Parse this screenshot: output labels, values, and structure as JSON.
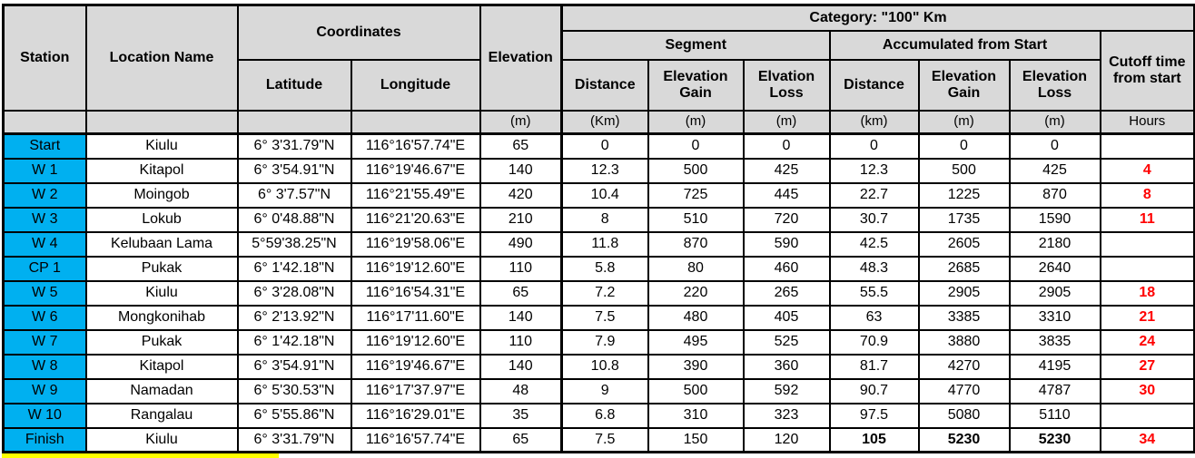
{
  "header": {
    "station": "Station",
    "location_name": "Location Name",
    "coordinates": "Coordinates",
    "latitude": "Latitude",
    "longitude": "Longitude",
    "elevation": "Elevation",
    "category": "Category: \"100\" Km",
    "segment": "Segment",
    "accumulated": "Accumulated from Start",
    "seg_distance": "Distance",
    "seg_gain": "Elevation Gain",
    "seg_loss": "Elvation Loss",
    "acc_distance": "Distance",
    "acc_gain": "Elevation Gain",
    "acc_loss": "Elevation Loss",
    "cutoff": "Cutoff time from start"
  },
  "units": {
    "elevation": "(m)",
    "seg_distance": "(Km)",
    "seg_gain": "(m)",
    "seg_loss": "(m)",
    "acc_distance": "(km)",
    "acc_gain": "(m)",
    "acc_loss": "(m)",
    "cutoff": "Hours"
  },
  "rows": [
    {
      "station": "Start",
      "location": "Kiulu",
      "latitude": "6° 3'31.79\"N",
      "longitude": "116°16'57.74\"E",
      "elevation": "65",
      "seg_distance": "0",
      "seg_gain": "0",
      "seg_loss": "0",
      "acc_distance": "0",
      "acc_gain": "0",
      "acc_loss": "0",
      "cutoff": ""
    },
    {
      "station": "W 1",
      "location": "Kitapol",
      "latitude": "6° 3'54.91\"N",
      "longitude": "116°19'46.67\"E",
      "elevation": "140",
      "seg_distance": "12.3",
      "seg_gain": "500",
      "seg_loss": "425",
      "acc_distance": "12.3",
      "acc_gain": "500",
      "acc_loss": "425",
      "cutoff": "4"
    },
    {
      "station": "W 2",
      "location": "Moingob",
      "latitude": "6° 3'7.57\"N",
      "longitude": "116°21'55.49\"E",
      "elevation": "420",
      "seg_distance": "10.4",
      "seg_gain": "725",
      "seg_loss": "445",
      "acc_distance": "22.7",
      "acc_gain": "1225",
      "acc_loss": "870",
      "cutoff": "8"
    },
    {
      "station": "W 3",
      "location": "Lokub",
      "latitude": "6° 0'48.88\"N",
      "longitude": "116°21'20.63\"E",
      "elevation": "210",
      "seg_distance": "8",
      "seg_gain": "510",
      "seg_loss": "720",
      "acc_distance": "30.7",
      "acc_gain": "1735",
      "acc_loss": "1590",
      "cutoff": "11"
    },
    {
      "station": "W 4",
      "location": "Kelubaan Lama",
      "latitude": "5°59'38.25\"N",
      "longitude": "116°19'58.06\"E",
      "elevation": "490",
      "seg_distance": "11.8",
      "seg_gain": "870",
      "seg_loss": "590",
      "acc_distance": "42.5",
      "acc_gain": "2605",
      "acc_loss": "2180",
      "cutoff": ""
    },
    {
      "station": "CP 1",
      "location": "Pukak",
      "latitude": "6° 1'42.18\"N",
      "longitude": "116°19'12.60\"E",
      "elevation": "110",
      "seg_distance": "5.8",
      "seg_gain": "80",
      "seg_loss": "460",
      "acc_distance": "48.3",
      "acc_gain": "2685",
      "acc_loss": "2640",
      "cutoff": ""
    },
    {
      "station": "W 5",
      "location": "Kiulu",
      "latitude": "6° 3'28.08\"N",
      "longitude": "116°16'54.31\"E",
      "elevation": "65",
      "seg_distance": "7.2",
      "seg_gain": "220",
      "seg_loss": "265",
      "acc_distance": "55.5",
      "acc_gain": "2905",
      "acc_loss": "2905",
      "cutoff": "18"
    },
    {
      "station": "W 6",
      "location": "Mongkonihab",
      "latitude": "6° 2'13.92\"N",
      "longitude": "116°17'11.60\"E",
      "elevation": "140",
      "seg_distance": "7.5",
      "seg_gain": "480",
      "seg_loss": "405",
      "acc_distance": "63",
      "acc_gain": "3385",
      "acc_loss": "3310",
      "cutoff": "21"
    },
    {
      "station": "W 7",
      "location": "Pukak",
      "latitude": "6° 1'42.18\"N",
      "longitude": "116°19'12.60\"E",
      "elevation": "110",
      "seg_distance": "7.9",
      "seg_gain": "495",
      "seg_loss": "525",
      "acc_distance": "70.9",
      "acc_gain": "3880",
      "acc_loss": "3835",
      "cutoff": "24"
    },
    {
      "station": "W 8",
      "location": "Kitapol",
      "latitude": "6° 3'54.91\"N",
      "longitude": "116°19'46.67\"E",
      "elevation": "140",
      "seg_distance": "10.8",
      "seg_gain": "390",
      "seg_loss": "360",
      "acc_distance": "81.7",
      "acc_gain": "4270",
      "acc_loss": "4195",
      "cutoff": "27"
    },
    {
      "station": "W 9",
      "location": "Namadan",
      "latitude": "6° 5'30.53\"N",
      "longitude": "116°17'37.97\"E",
      "elevation": "48",
      "seg_distance": "9",
      "seg_gain": "500",
      "seg_loss": "592",
      "acc_distance": "90.7",
      "acc_gain": "4770",
      "acc_loss": "4787",
      "cutoff": "30"
    },
    {
      "station": "W 10",
      "location": "Rangalau",
      "latitude": "6° 5'55.86\"N",
      "longitude": "116°16'29.01\"E",
      "elevation": "35",
      "seg_distance": "6.8",
      "seg_gain": "310",
      "seg_loss": "323",
      "acc_distance": "97.5",
      "acc_gain": "5080",
      "acc_loss": "5110",
      "cutoff": ""
    },
    {
      "station": "Finish",
      "location": "Kiulu",
      "latitude": "6° 3'31.79\"N",
      "longitude": "116°16'57.74\"E",
      "elevation": "65",
      "seg_distance": "7.5",
      "seg_gain": "150",
      "seg_loss": "120",
      "acc_distance": "105",
      "acc_gain": "5230",
      "acc_loss": "5230",
      "cutoff": "34",
      "accumulated_bold": true
    }
  ],
  "colors": {
    "header_bg": "#D9D9D9",
    "station_bg": "#00B0F0",
    "cutoff_red": "#FF0000",
    "highlight_yellow": "#FFFF00",
    "border_black": "#000000"
  }
}
